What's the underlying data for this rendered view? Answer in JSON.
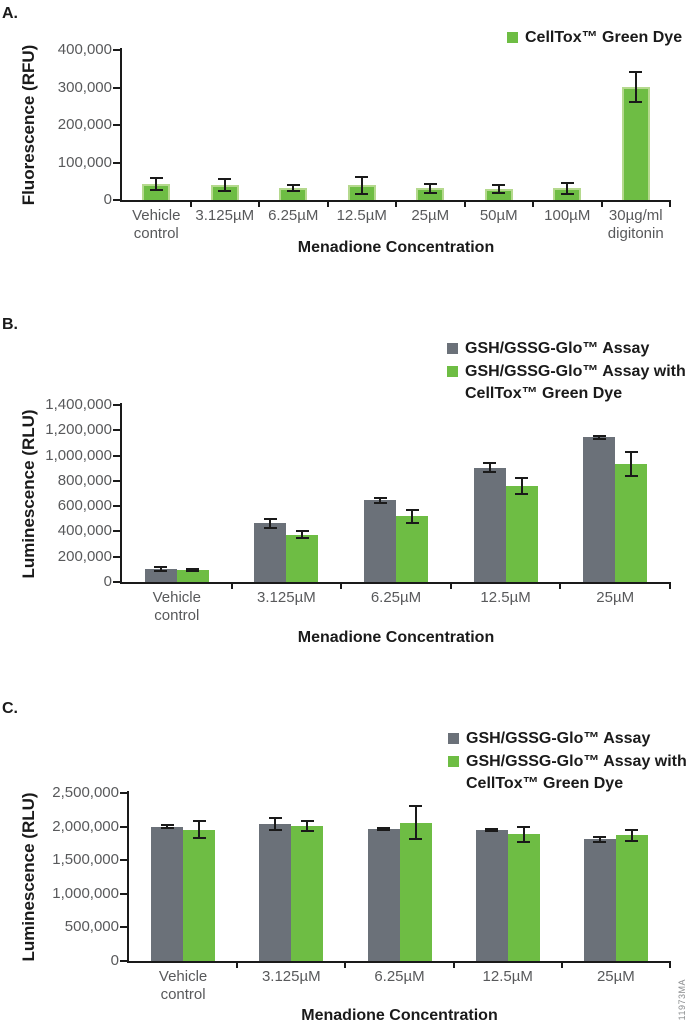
{
  "watermark": "11973MA",
  "chart_data": [
    {
      "panel_label": "A.",
      "type": "bar",
      "title": "",
      "xlabel": "Menadione Concentration",
      "ylabel": "Fluorescence (RFU)",
      "ylim": [
        0,
        400000
      ],
      "ytick_labels": [
        "0",
        "100,000",
        "200,000",
        "300,000",
        "400,000"
      ],
      "grid": false,
      "legend_position": "top-right",
      "error_bars": true,
      "bar_outline": "#b5d98e",
      "categories": [
        "Vehicle\ncontrol",
        "3.125µM",
        "6.25µM",
        "12.5µM",
        "25µM",
        "50µM",
        "100µM",
        "30µg/ml\ndigitonin"
      ],
      "series": [
        {
          "name": "CellTox™ Green Dye",
          "color": "#6ebd44",
          "values": [
            43000,
            41000,
            32000,
            39000,
            32000,
            30000,
            31000,
            301000
          ],
          "errors": [
            16000,
            16000,
            9000,
            22000,
            12000,
            10000,
            15000,
            40000
          ]
        }
      ]
    },
    {
      "panel_label": "B.",
      "type": "bar",
      "title": "",
      "xlabel": "Menadione Concentration",
      "ylabel": "Luminescence (RLU)",
      "ylim": [
        0,
        1400000
      ],
      "ytick_labels": [
        "0",
        "200,000",
        "400,000",
        "600,000",
        "800,000",
        "1,000,000",
        "1,200,000",
        "1,400,000"
      ],
      "grid": false,
      "legend_position": "top-right",
      "error_bars": true,
      "categories": [
        "Vehicle\ncontrol",
        "3.125µM",
        "6.25µM",
        "12.5µM",
        "25µM"
      ],
      "series": [
        {
          "name": "GSH/GSSG-Glo™ Assay",
          "color": "#6b7179",
          "values": [
            100000,
            465000,
            645000,
            905000,
            1145000
          ],
          "errors": [
            15000,
            35000,
            18000,
            35000,
            12000
          ]
        },
        {
          "name": "GSH/GSSG-Glo™ Assay with\nCellTox™ Green Dye",
          "color": "#6ebd44",
          "values": [
            95000,
            375000,
            520000,
            760000,
            935000
          ],
          "errors": [
            10000,
            30000,
            50000,
            60000,
            95000
          ]
        }
      ]
    },
    {
      "panel_label": "C.",
      "type": "bar",
      "title": "",
      "xlabel": "Menadione Concentration",
      "ylabel": "Luminescence (RLU)",
      "ylim": [
        0,
        2500000
      ],
      "ytick_labels": [
        "0",
        "500,000",
        "1,000,000",
        "1,500,000",
        "2,000,000",
        "2,500,000"
      ],
      "grid": false,
      "legend_position": "top-right",
      "error_bars": true,
      "categories": [
        "Vehicle\ncontrol",
        "3.125µM",
        "6.25µM",
        "12.5µM",
        "25µM"
      ],
      "series": [
        {
          "name": "GSH/GSSG-Glo™ Assay",
          "color": "#6b7179",
          "values": [
            2000000,
            2040000,
            1970000,
            1950000,
            1810000
          ],
          "errors": [
            25000,
            90000,
            15000,
            20000,
            40000
          ]
        },
        {
          "name": "GSH/GSSG-Glo™ Assay with\nCellTox™ Green Dye",
          "color": "#6ebd44",
          "values": [
            1955000,
            2010000,
            2060000,
            1885000,
            1870000
          ],
          "errors": [
            125000,
            75000,
            240000,
            110000,
            85000
          ]
        }
      ]
    }
  ]
}
